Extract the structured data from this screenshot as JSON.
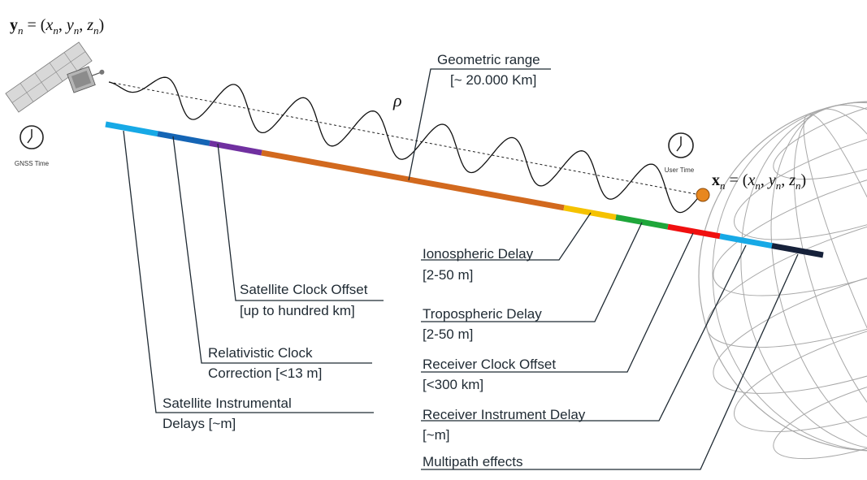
{
  "satellite": {
    "position_label": "y_n = (x_n, y_n, z_n)",
    "time_label": "GNSS Time"
  },
  "user": {
    "position_label": "x_n = (x_n, y_n, z_n)",
    "time_label": "User Time"
  },
  "range": {
    "symbol": "ρ",
    "label_line1": "Geometric range",
    "label_line2": "[~ 20.000 Km]"
  },
  "error_bar": {
    "segments": [
      {
        "name": "satellite-instrumental-delays",
        "color": "#17a9e6"
      },
      {
        "name": "relativistic-clock-correction",
        "color": "#1565b5"
      },
      {
        "name": "satellite-clock-offset",
        "color": "#7030a0"
      },
      {
        "name": "geometric-range",
        "color": "#d2691e"
      },
      {
        "name": "ionospheric-delay",
        "color": "#f5c200"
      },
      {
        "name": "tropospheric-delay",
        "color": "#1fa63a"
      },
      {
        "name": "receiver-clock-offset",
        "color": "#f00f0f"
      },
      {
        "name": "receiver-instrument-delay",
        "color": "#17a9e6"
      },
      {
        "name": "multipath-effects",
        "color": "#16213a"
      }
    ]
  },
  "labels": {
    "satellite_clock_offset": {
      "line1": "Satellite Clock Offset",
      "line2": "[up to hundred km]"
    },
    "relativistic_clock": {
      "line1": "Relativistic Clock",
      "line2": "Correction [<13 m]"
    },
    "satellite_instrumental": {
      "line1": "Satellite Instrumental",
      "line2": "Delays [~m]"
    },
    "ionospheric": {
      "line1": "Ionospheric Delay",
      "line2": "[2-50 m]"
    },
    "tropospheric": {
      "line1": "Tropospheric Delay",
      "line2": "[2-50 m]"
    },
    "receiver_clock": {
      "line1": "Receiver Clock Offset",
      "line2": "[<300 km]"
    },
    "receiver_instrument": {
      "line1": "Receiver Instrument Delay",
      "line2": "[~m]"
    },
    "multipath": {
      "line1": "Multipath effects"
    }
  },
  "colors": {
    "user_marker": "#e8871e",
    "globe_lines": "#a8a8a8",
    "leader_lines": "#1f2a33"
  }
}
